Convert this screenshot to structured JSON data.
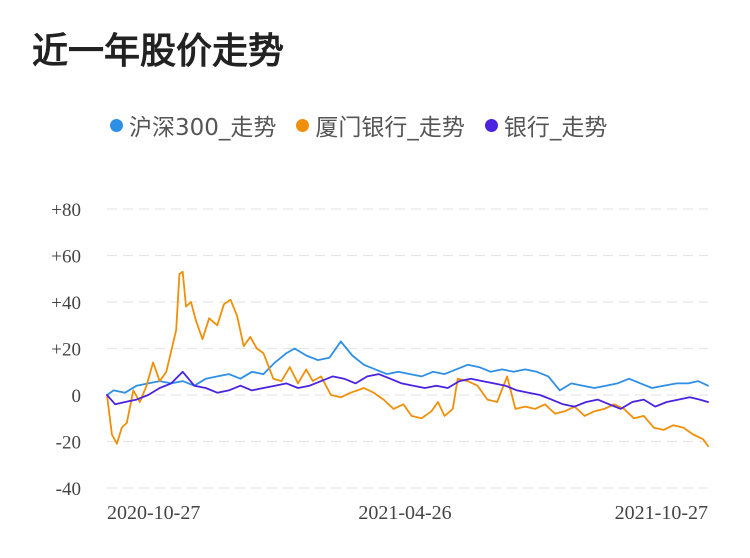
{
  "title": "近一年股价走势",
  "chart_data": {
    "type": "line",
    "title": "近一年股价走势",
    "xlabel": "",
    "ylabel": "",
    "x_ticks": [
      "2020-10-27",
      "2021-04-26",
      "2021-10-27"
    ],
    "x_range": [
      "2020-10-27",
      "2021-10-27"
    ],
    "ylim": [
      -40,
      80
    ],
    "y_ticks": [
      {
        "value": 80,
        "label": "+80"
      },
      {
        "value": 60,
        "label": "+60"
      },
      {
        "value": 40,
        "label": "+40"
      },
      {
        "value": 20,
        "label": "+20"
      },
      {
        "value": 0,
        "label": "0"
      },
      {
        "value": -20,
        "label": "-20"
      },
      {
        "value": -40,
        "label": "-40"
      }
    ],
    "grid": true,
    "legend": "top",
    "series": [
      {
        "name": "沪深300_走势",
        "color": "#2e8fe6",
        "points": [
          [
            "2020-10-27",
            0
          ],
          [
            "2020-10-31",
            2
          ],
          [
            "2020-11-07",
            1
          ],
          [
            "2020-11-14",
            4
          ],
          [
            "2020-11-21",
            5
          ],
          [
            "2020-11-28",
            6
          ],
          [
            "2020-12-05",
            5
          ],
          [
            "2020-12-12",
            6
          ],
          [
            "2020-12-19",
            4
          ],
          [
            "2020-12-26",
            7
          ],
          [
            "2021-01-02",
            8
          ],
          [
            "2021-01-09",
            9
          ],
          [
            "2021-01-16",
            7
          ],
          [
            "2021-01-23",
            10
          ],
          [
            "2021-01-30",
            9
          ],
          [
            "2021-02-06",
            14
          ],
          [
            "2021-02-13",
            18
          ],
          [
            "2021-02-18",
            20
          ],
          [
            "2021-02-25",
            17
          ],
          [
            "2021-03-04",
            15
          ],
          [
            "2021-03-11",
            16
          ],
          [
            "2021-03-18",
            23
          ],
          [
            "2021-03-25",
            17
          ],
          [
            "2021-04-01",
            13
          ],
          [
            "2021-04-08",
            11
          ],
          [
            "2021-04-15",
            9
          ],
          [
            "2021-04-22",
            10
          ],
          [
            "2021-04-29",
            9
          ],
          [
            "2021-05-06",
            8
          ],
          [
            "2021-05-13",
            10
          ],
          [
            "2021-05-20",
            9
          ],
          [
            "2021-05-27",
            11
          ],
          [
            "2021-06-03",
            13
          ],
          [
            "2021-06-10",
            12
          ],
          [
            "2021-06-17",
            10
          ],
          [
            "2021-06-24",
            11
          ],
          [
            "2021-07-01",
            10
          ],
          [
            "2021-07-08",
            11
          ],
          [
            "2021-07-15",
            10
          ],
          [
            "2021-07-22",
            8
          ],
          [
            "2021-07-29",
            2
          ],
          [
            "2021-08-05",
            5
          ],
          [
            "2021-08-12",
            4
          ],
          [
            "2021-08-19",
            3
          ],
          [
            "2021-08-26",
            4
          ],
          [
            "2021-09-02",
            5
          ],
          [
            "2021-09-09",
            7
          ],
          [
            "2021-09-16",
            5
          ],
          [
            "2021-09-23",
            3
          ],
          [
            "2021-09-30",
            4
          ],
          [
            "2021-10-08",
            5
          ],
          [
            "2021-10-15",
            5
          ],
          [
            "2021-10-21",
            6
          ],
          [
            "2021-10-27",
            4
          ]
        ]
      },
      {
        "name": "厦门银行_走势",
        "color": "#f0900a",
        "points": [
          [
            "2020-10-27",
            0
          ],
          [
            "2020-10-30",
            -17
          ],
          [
            "2020-11-02",
            -21
          ],
          [
            "2020-11-05",
            -14
          ],
          [
            "2020-11-08",
            -12
          ],
          [
            "2020-11-12",
            2
          ],
          [
            "2020-11-16",
            -3
          ],
          [
            "2020-11-20",
            4
          ],
          [
            "2020-11-24",
            14
          ],
          [
            "2020-11-28",
            6
          ],
          [
            "2020-12-02",
            10
          ],
          [
            "2020-12-06",
            22
          ],
          [
            "2020-12-08",
            28
          ],
          [
            "2020-12-10",
            52
          ],
          [
            "2020-12-12",
            53
          ],
          [
            "2020-12-14",
            38
          ],
          [
            "2020-12-17",
            40
          ],
          [
            "2020-12-20",
            32
          ],
          [
            "2020-12-24",
            24
          ],
          [
            "2020-12-28",
            33
          ],
          [
            "2021-01-02",
            30
          ],
          [
            "2021-01-06",
            39
          ],
          [
            "2021-01-10",
            41
          ],
          [
            "2021-01-14",
            34
          ],
          [
            "2021-01-18",
            21
          ],
          [
            "2021-01-22",
            25
          ],
          [
            "2021-01-26",
            20
          ],
          [
            "2021-01-30",
            18
          ],
          [
            "2021-02-05",
            7
          ],
          [
            "2021-02-10",
            6
          ],
          [
            "2021-02-15",
            12
          ],
          [
            "2021-02-20",
            5
          ],
          [
            "2021-02-25",
            11
          ],
          [
            "2021-03-01",
            6
          ],
          [
            "2021-03-06",
            8
          ],
          [
            "2021-03-12",
            0
          ],
          [
            "2021-03-18",
            -1
          ],
          [
            "2021-03-24",
            1
          ],
          [
            "2021-04-01",
            3
          ],
          [
            "2021-04-07",
            1
          ],
          [
            "2021-04-13",
            -2
          ],
          [
            "2021-04-19",
            -6
          ],
          [
            "2021-04-25",
            -4
          ],
          [
            "2021-04-30",
            -9
          ],
          [
            "2021-05-06",
            -10
          ],
          [
            "2021-05-12",
            -7
          ],
          [
            "2021-05-16",
            -3
          ],
          [
            "2021-05-20",
            -9
          ],
          [
            "2021-05-25",
            -6
          ],
          [
            "2021-05-28",
            7
          ],
          [
            "2021-06-03",
            6
          ],
          [
            "2021-06-09",
            4
          ],
          [
            "2021-06-15",
            -2
          ],
          [
            "2021-06-21",
            -3
          ],
          [
            "2021-06-27",
            8
          ],
          [
            "2021-07-02",
            -6
          ],
          [
            "2021-07-08",
            -5
          ],
          [
            "2021-07-14",
            -6
          ],
          [
            "2021-07-20",
            -4
          ],
          [
            "2021-07-26",
            -8
          ],
          [
            "2021-08-01",
            -7
          ],
          [
            "2021-08-07",
            -5
          ],
          [
            "2021-08-13",
            -9
          ],
          [
            "2021-08-19",
            -7
          ],
          [
            "2021-08-25",
            -6
          ],
          [
            "2021-08-31",
            -4
          ],
          [
            "2021-09-06",
            -6
          ],
          [
            "2021-09-12",
            -10
          ],
          [
            "2021-09-18",
            -9
          ],
          [
            "2021-09-24",
            -14
          ],
          [
            "2021-09-30",
            -15
          ],
          [
            "2021-10-06",
            -13
          ],
          [
            "2021-10-12",
            -14
          ],
          [
            "2021-10-18",
            -17
          ],
          [
            "2021-10-24",
            -19
          ],
          [
            "2021-10-27",
            -22
          ]
        ]
      },
      {
        "name": "银行_走势",
        "color": "#4a22e0",
        "points": [
          [
            "2020-10-27",
            0
          ],
          [
            "2020-11-01",
            -4
          ],
          [
            "2020-11-07",
            -3
          ],
          [
            "2020-11-14",
            -2
          ],
          [
            "2020-11-21",
            0
          ],
          [
            "2020-11-28",
            3
          ],
          [
            "2020-12-05",
            5
          ],
          [
            "2020-12-12",
            10
          ],
          [
            "2020-12-19",
            4
          ],
          [
            "2020-12-26",
            3
          ],
          [
            "2021-01-02",
            1
          ],
          [
            "2021-01-09",
            2
          ],
          [
            "2021-01-16",
            4
          ],
          [
            "2021-01-23",
            2
          ],
          [
            "2021-01-30",
            3
          ],
          [
            "2021-02-06",
            4
          ],
          [
            "2021-02-13",
            5
          ],
          [
            "2021-02-20",
            3
          ],
          [
            "2021-02-27",
            4
          ],
          [
            "2021-03-06",
            6
          ],
          [
            "2021-03-13",
            8
          ],
          [
            "2021-03-20",
            7
          ],
          [
            "2021-03-27",
            5
          ],
          [
            "2021-04-03",
            8
          ],
          [
            "2021-04-10",
            9
          ],
          [
            "2021-04-17",
            7
          ],
          [
            "2021-04-24",
            5
          ],
          [
            "2021-05-01",
            4
          ],
          [
            "2021-05-08",
            3
          ],
          [
            "2021-05-15",
            4
          ],
          [
            "2021-05-22",
            3
          ],
          [
            "2021-05-29",
            6
          ],
          [
            "2021-06-05",
            7
          ],
          [
            "2021-06-12",
            6
          ],
          [
            "2021-06-19",
            5
          ],
          [
            "2021-06-26",
            4
          ],
          [
            "2021-07-03",
            2
          ],
          [
            "2021-07-10",
            1
          ],
          [
            "2021-07-17",
            0
          ],
          [
            "2021-07-24",
            -2
          ],
          [
            "2021-07-31",
            -4
          ],
          [
            "2021-08-07",
            -5
          ],
          [
            "2021-08-14",
            -3
          ],
          [
            "2021-08-21",
            -2
          ],
          [
            "2021-08-28",
            -4
          ],
          [
            "2021-09-04",
            -6
          ],
          [
            "2021-09-11",
            -3
          ],
          [
            "2021-09-18",
            -2
          ],
          [
            "2021-09-25",
            -5
          ],
          [
            "2021-10-02",
            -3
          ],
          [
            "2021-10-09",
            -2
          ],
          [
            "2021-10-16",
            -1
          ],
          [
            "2021-10-22",
            -2
          ],
          [
            "2021-10-27",
            -3
          ]
        ]
      }
    ]
  }
}
